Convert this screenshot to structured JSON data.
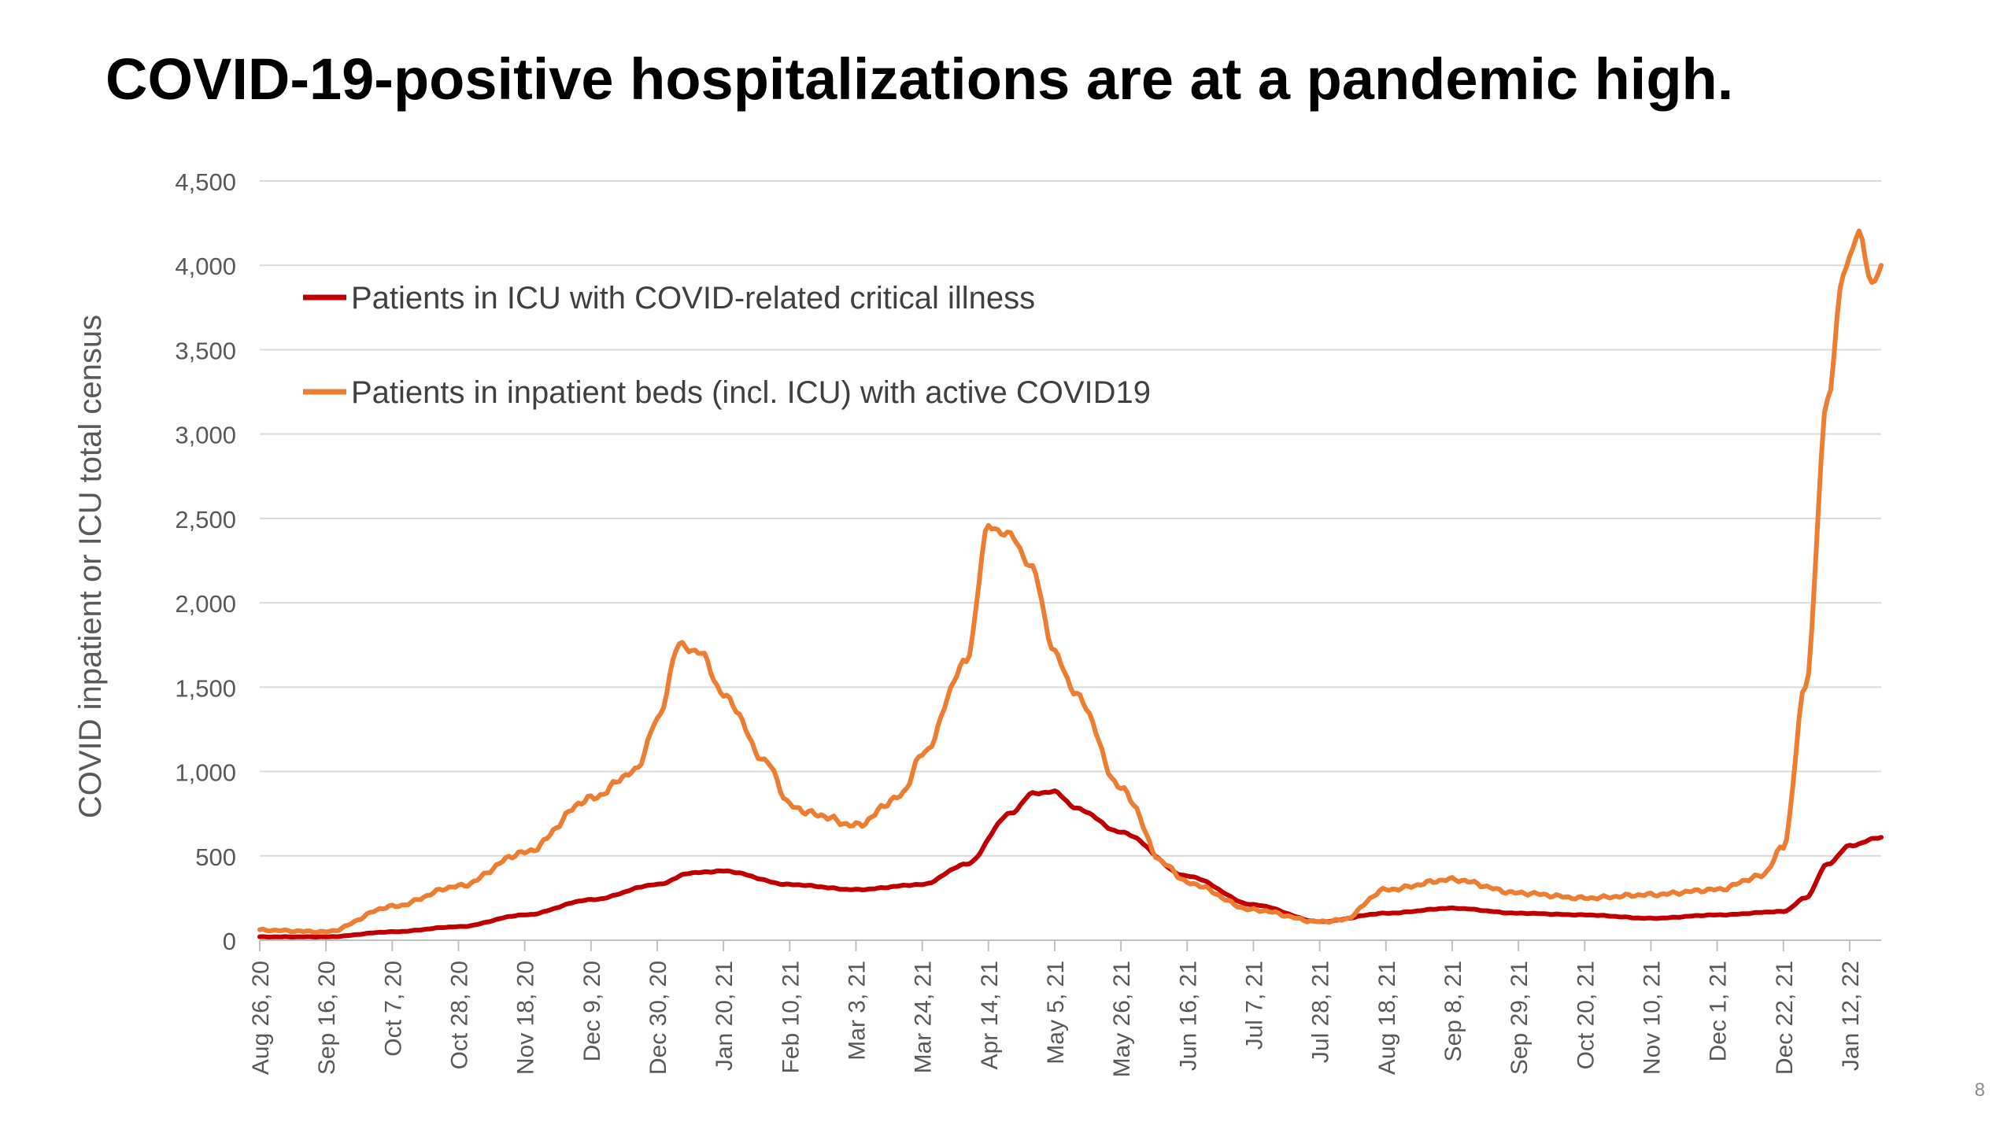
{
  "slide": {
    "title": "COVID-19-positive hospitalizations are at a pandemic high.",
    "page_number": "8"
  },
  "chart_data": {
    "type": "line",
    "title": "",
    "xlabel": "",
    "ylabel": "COVID inpatient or ICU total census",
    "ylim": [
      0,
      4500
    ],
    "y_ticks": [
      0,
      500,
      1000,
      1500,
      2000,
      2500,
      3000,
      3500,
      4000,
      4500
    ],
    "y_tick_labels": [
      "0",
      "500",
      "1,000",
      "1,500",
      "2,000",
      "2,500",
      "3,000",
      "3,500",
      "4,000",
      "4,500"
    ],
    "x_range": [
      "2020-08-26",
      "2022-01-22"
    ],
    "x_ticks": [
      "2020-08-26",
      "2020-09-16",
      "2020-10-07",
      "2020-10-28",
      "2020-11-18",
      "2020-12-09",
      "2020-12-30",
      "2021-01-20",
      "2021-02-10",
      "2021-03-03",
      "2021-03-24",
      "2021-04-14",
      "2021-05-05",
      "2021-05-26",
      "2021-06-16",
      "2021-07-07",
      "2021-07-28",
      "2021-08-18",
      "2021-09-08",
      "2021-09-29",
      "2021-10-20",
      "2021-11-10",
      "2021-12-01",
      "2021-12-22",
      "2022-01-12"
    ],
    "x_tick_labels": [
      "Aug 26, 20",
      "Sep 16, 20",
      "Oct 7, 20",
      "Oct 28, 20",
      "Nov 18, 20",
      "Dec 9, 20",
      "Dec 30, 20",
      "Jan 20, 21",
      "Feb 10, 21",
      "Mar 3, 21",
      "Mar 24, 21",
      "Apr 14, 21",
      "May 5, 21",
      "May 26, 21",
      "Jun 16, 21",
      "Jul 7, 21",
      "Jul 28, 21",
      "Aug 18, 21",
      "Sep 8, 21",
      "Sep 29, 21",
      "Oct 20, 21",
      "Nov 10, 21",
      "Dec 1, 21",
      "Dec 22, 21",
      "Jan 12, 22"
    ],
    "grid": true,
    "legend_position": "top-left",
    "series": [
      {
        "name": "Patients in ICU with COVID-related critical illness",
        "color": "#c00000",
        "x": [
          "2020-08-26",
          "2020-09-16",
          "2020-10-07",
          "2020-10-28",
          "2020-11-18",
          "2020-12-09",
          "2020-12-30",
          "2021-01-10",
          "2021-01-20",
          "2021-02-10",
          "2021-03-03",
          "2021-03-24",
          "2021-04-07",
          "2021-04-21",
          "2021-04-28",
          "2021-05-05",
          "2021-05-12",
          "2021-05-26",
          "2021-06-16",
          "2021-07-07",
          "2021-07-28",
          "2021-08-18",
          "2021-09-08",
          "2021-09-29",
          "2021-10-20",
          "2021-11-10",
          "2021-12-01",
          "2021-12-22",
          "2021-12-29",
          "2022-01-05",
          "2022-01-12",
          "2022-01-22"
        ],
        "y": [
          20,
          20,
          50,
          80,
          150,
          240,
          330,
          400,
          410,
          330,
          300,
          330,
          450,
          750,
          870,
          880,
          780,
          640,
          380,
          210,
          110,
          160,
          190,
          160,
          150,
          130,
          150,
          170,
          250,
          450,
          560,
          610
        ]
      },
      {
        "name": "Patients in inpatient beds (incl. ICU) with active COVID19",
        "color": "#ed7d31",
        "x": [
          "2020-08-26",
          "2020-09-16",
          "2020-10-07",
          "2020-10-28",
          "2020-11-18",
          "2020-12-09",
          "2020-12-23",
          "2020-12-30",
          "2021-01-06",
          "2021-01-13",
          "2021-01-20",
          "2021-02-03",
          "2021-02-10",
          "2021-02-17",
          "2021-03-03",
          "2021-03-17",
          "2021-03-24",
          "2021-04-07",
          "2021-04-14",
          "2021-04-21",
          "2021-04-28",
          "2021-05-05",
          "2021-05-12",
          "2021-05-26",
          "2021-06-09",
          "2021-06-16",
          "2021-07-07",
          "2021-07-28",
          "2021-08-04",
          "2021-08-18",
          "2021-09-08",
          "2021-09-29",
          "2021-10-20",
          "2021-11-10",
          "2021-12-01",
          "2021-12-15",
          "2021-12-22",
          "2021-12-29",
          "2022-01-05",
          "2022-01-10",
          "2022-01-15",
          "2022-01-19",
          "2022-01-22"
        ],
        "y": [
          60,
          50,
          200,
          320,
          520,
          840,
          1000,
          1300,
          1750,
          1700,
          1450,
          1050,
          800,
          750,
          680,
          850,
          1100,
          1650,
          2450,
          2400,
          2200,
          1700,
          1450,
          900,
          450,
          340,
          180,
          110,
          120,
          300,
          360,
          280,
          250,
          270,
          300,
          380,
          550,
          1500,
          3200,
          3950,
          4200,
          3880,
          4000
        ]
      }
    ]
  }
}
